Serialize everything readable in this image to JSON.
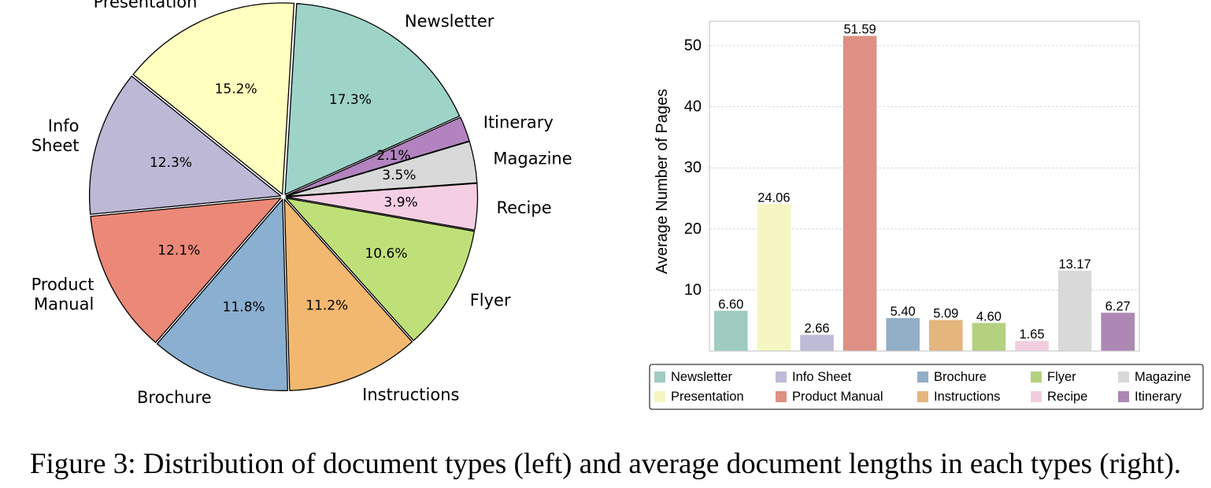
{
  "caption": "Figure 3: Distribution of document types (left) and average document lengths in each types (right).",
  "chart_data": [
    {
      "type": "pie",
      "slices": [
        {
          "label": "Newsletter",
          "value": 17.3,
          "pct_label": "17.3%",
          "color": "#9ed3c8"
        },
        {
          "label": "Itinerary",
          "value": 2.1,
          "pct_label": "2.1%",
          "color": "#b283be"
        },
        {
          "label": "Magazine",
          "value": 3.5,
          "pct_label": "3.5%",
          "color": "#d9d9d9"
        },
        {
          "label": "Recipe",
          "value": 3.9,
          "pct_label": "3.9%",
          "color": "#f4cfe4"
        },
        {
          "label": "Flyer",
          "value": 10.6,
          "pct_label": "10.6%",
          "color": "#bfe079"
        },
        {
          "label": "Instructions",
          "value": 11.2,
          "pct_label": "11.2%",
          "color": "#f3b86f"
        },
        {
          "label": "Brochure",
          "value": 11.8,
          "pct_label": "11.8%",
          "color": "#8aafd0"
        },
        {
          "label": "Product\nManual",
          "value": 12.1,
          "pct_label": "12.1%",
          "color": "#ec8877"
        },
        {
          "label": "Info\nSheet",
          "value": 12.3,
          "pct_label": "12.3%",
          "color": "#bcb8d6"
        },
        {
          "label": "Presentation",
          "value": 15.2,
          "pct_label": "15.2%",
          "color": "#ffffbf"
        }
      ]
    },
    {
      "type": "bar",
      "categories": [
        "Newsletter",
        "Presentation",
        "Info Sheet",
        "Product Manual",
        "Brochure",
        "Instructions",
        "Flyer",
        "Recipe",
        "Magazine",
        "Itinerary"
      ],
      "values": [
        6.6,
        24.06,
        2.66,
        51.59,
        5.4,
        5.09,
        4.6,
        1.65,
        13.17,
        6.27
      ],
      "value_labels": [
        "6.60",
        "24.06",
        "2.66",
        "51.59",
        "5.40",
        "5.09",
        "4.60",
        "1.65",
        "13.17",
        "6.27"
      ],
      "colors": [
        "#9fcbc1",
        "#f6f6c2",
        "#bdbbd6",
        "#dd9083",
        "#93aec7",
        "#e5b57e",
        "#b3d17f",
        "#f1cedf",
        "#d9d9d9",
        "#ad88b5"
      ],
      "ylabel": "Average Number of Pages",
      "ylim": [
        0,
        54
      ],
      "yticks": [
        10,
        20,
        30,
        40,
        50
      ],
      "grid": true,
      "legend": {
        "placement": "bottom",
        "columns": 5,
        "entries": [
          "Newsletter",
          "Presentation",
          "Info Sheet",
          "Product Manual",
          "Brochure",
          "Instructions",
          "Flyer",
          "Recipe",
          "Magazine",
          "Itinerary"
        ]
      }
    }
  ]
}
